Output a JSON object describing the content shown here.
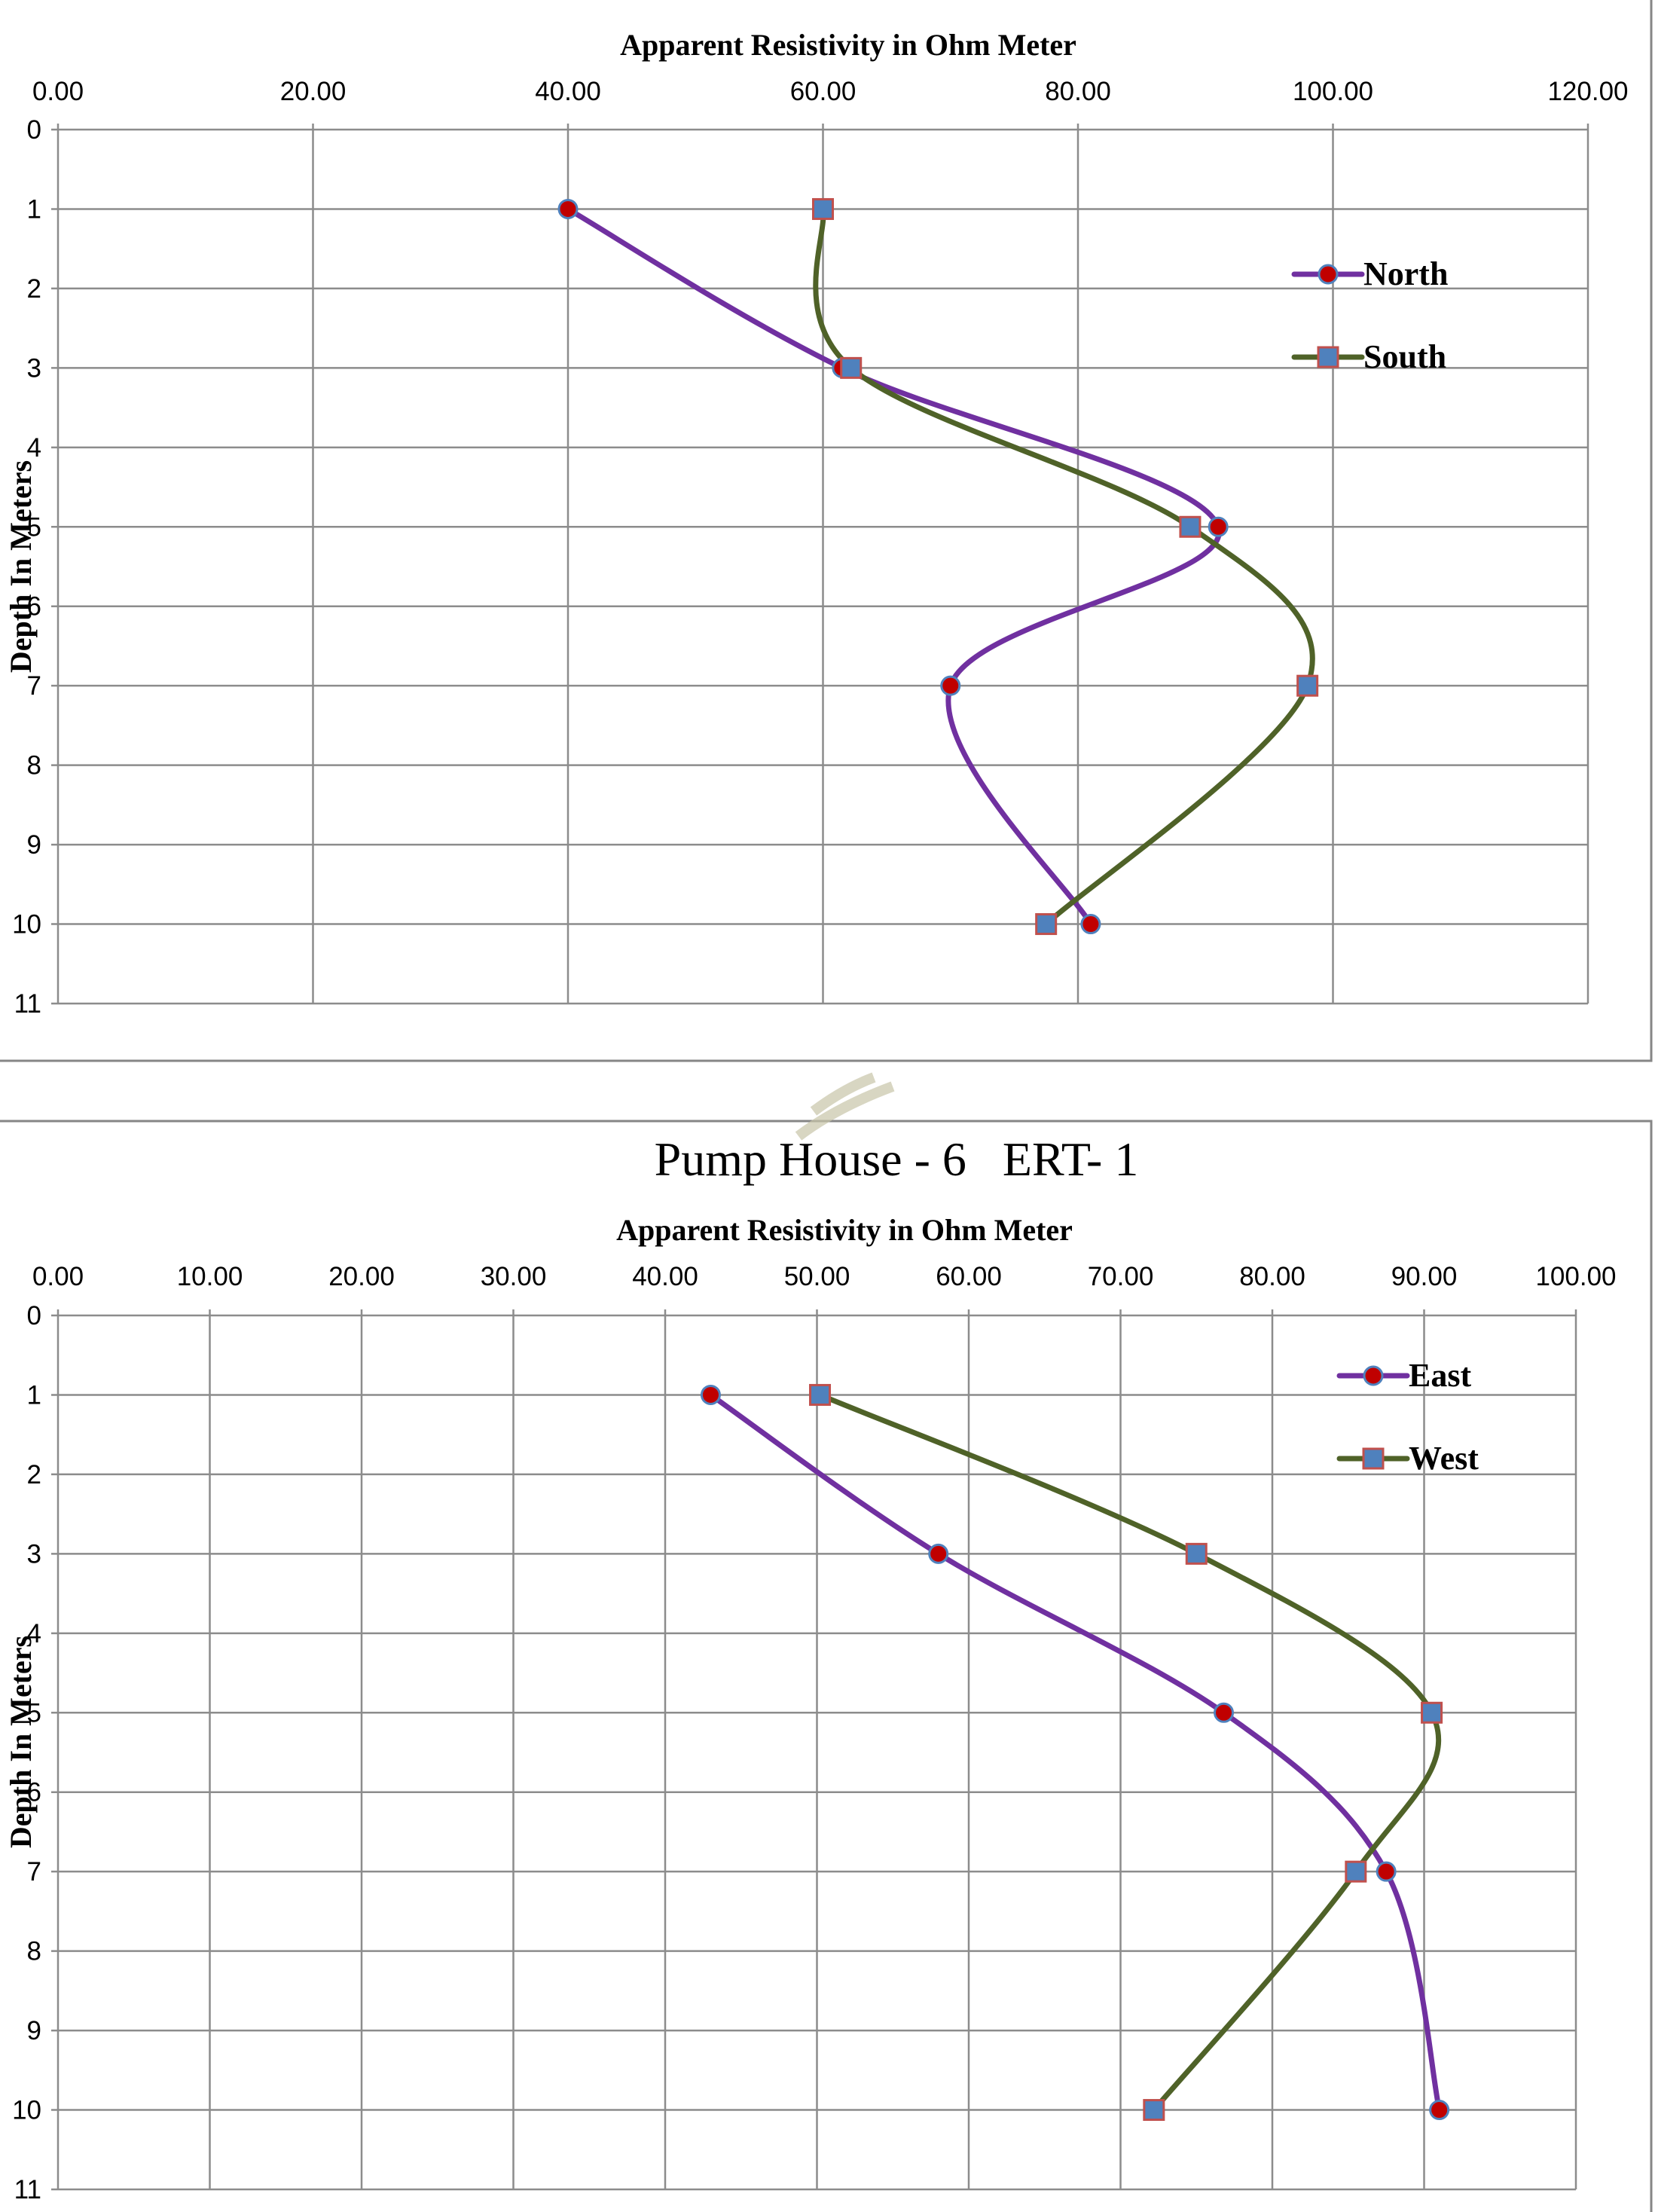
{
  "chart_data": [
    {
      "type": "line",
      "title": "",
      "xlabel": "Apparent Resistivity in Ohm Meter",
      "ylabel": "Depth In Meters",
      "xlim": [
        0,
        120
      ],
      "ylim": [
        0,
        11
      ],
      "x_axis_position": "top",
      "y_axis_inverted": true,
      "x_ticks": [
        "0.00",
        "20.00",
        "40.00",
        "60.00",
        "80.00",
        "100.00",
        "120.00"
      ],
      "y_ticks": [
        "0",
        "1",
        "2",
        "3",
        "4",
        "5",
        "6",
        "7",
        "8",
        "9",
        "10",
        "11"
      ],
      "grid": true,
      "legend": "right",
      "series": [
        {
          "name": "North",
          "marker": "circle",
          "color": "#7030A0",
          "marker_fill": "#C00000",
          "marker_edge": "#4F81BD",
          "points": [
            [
              40.0,
              1
            ],
            [
              61.5,
              3
            ],
            [
              91.0,
              5
            ],
            [
              70.0,
              7
            ],
            [
              81.0,
              10
            ]
          ]
        },
        {
          "name": "South",
          "marker": "square",
          "color": "#4F6228",
          "marker_fill": "#4F81BD",
          "marker_edge": "#C0504D",
          "points": [
            [
              60.0,
              1
            ],
            [
              62.2,
              3
            ],
            [
              88.8,
              5
            ],
            [
              98.0,
              7
            ],
            [
              77.5,
              10
            ]
          ]
        }
      ]
    },
    {
      "type": "line",
      "title": "Pump House - 6   ERT- 1",
      "xlabel": "Apparent Resistivity in Ohm Meter",
      "ylabel": "Depth In Meters",
      "xlim": [
        0,
        100
      ],
      "ylim": [
        0,
        11
      ],
      "x_axis_position": "top",
      "y_axis_inverted": true,
      "x_ticks": [
        "0.00",
        "10.00",
        "20.00",
        "30.00",
        "40.00",
        "50.00",
        "60.00",
        "70.00",
        "80.00",
        "90.00",
        "100.00"
      ],
      "y_ticks": [
        "0",
        "1",
        "2",
        "3",
        "4",
        "5",
        "6",
        "7",
        "8",
        "9",
        "10",
        "11"
      ],
      "grid": true,
      "legend": "top-right",
      "series": [
        {
          "name": "East",
          "marker": "circle",
          "color": "#7030A0",
          "marker_fill": "#C00000",
          "marker_edge": "#4F81BD",
          "points": [
            [
              43.0,
              1
            ],
            [
              58.0,
              3
            ],
            [
              76.8,
              5
            ],
            [
              87.5,
              7
            ],
            [
              91.0,
              10
            ]
          ]
        },
        {
          "name": "West",
          "marker": "square",
          "color": "#4F6228",
          "marker_fill": "#4F81BD",
          "marker_edge": "#C0504D",
          "points": [
            [
              50.2,
              1
            ],
            [
              75.0,
              3
            ],
            [
              90.5,
              5
            ],
            [
              85.5,
              7
            ],
            [
              72.2,
              10
            ]
          ]
        }
      ]
    }
  ]
}
